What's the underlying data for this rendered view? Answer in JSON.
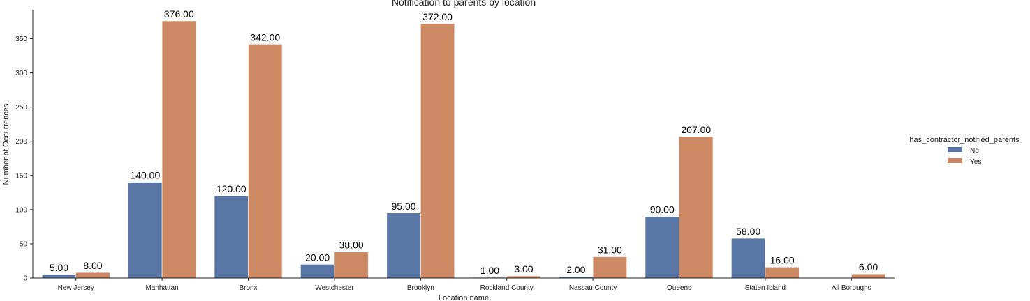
{
  "chart_data": {
    "type": "bar",
    "title": "Notification to parents by location",
    "xlabel": "Location name",
    "ylabel": "Number of Occurrences",
    "categories": [
      "New Jersey",
      "Manhattan",
      "Bronx",
      "Westchester",
      "Brooklyn",
      "Rockland County",
      "Nassau County",
      "Queens",
      "Staten Island",
      "All Boroughs"
    ],
    "series": [
      {
        "name": "No",
        "color": "#5875a4",
        "values": [
          5,
          140,
          120,
          20,
          95,
          1,
          2,
          90,
          58,
          null
        ]
      },
      {
        "name": "Yes",
        "color": "#cc8963",
        "values": [
          8,
          376,
          342,
          38,
          372,
          3,
          31,
          207,
          16,
          6
        ]
      }
    ],
    "data_labels": {
      "No": [
        "5.00",
        "140.00",
        "120.00",
        "20.00",
        "95.00",
        "1.00",
        "2.00",
        "90.00",
        "58.00",
        ""
      ],
      "Yes": [
        "8.00",
        "376.00",
        "342.00",
        "38.00",
        "372.00",
        "3.00",
        "31.00",
        "207.00",
        "16.00",
        "6.00"
      ]
    },
    "ylim": [
      0,
      395
    ],
    "yticks": [
      "0",
      "50",
      "100",
      "150",
      "200",
      "250",
      "300",
      "350"
    ],
    "grid": false,
    "legend": {
      "title": "has_contractor_notified_parents",
      "placement": "right",
      "entries": [
        "No",
        "Yes"
      ]
    }
  }
}
